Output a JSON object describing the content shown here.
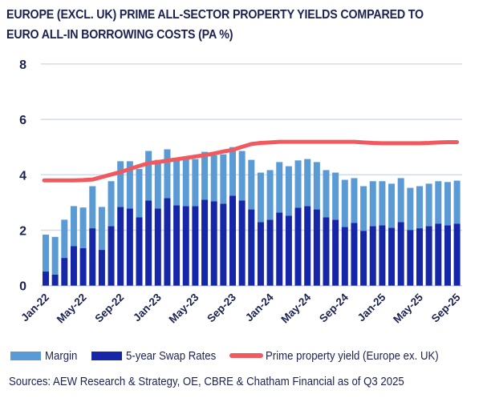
{
  "title": "EUROPE (EXCL. UK) PRIME ALL-SECTOR PROPERTY YIELDS COMPARED TO EURO ALL-IN BORROWING COSTS (PA %)",
  "colors": {
    "margin": "#5b9bd5",
    "swap": "#1526a8",
    "yield_line": "#f05a5f",
    "grid": "#d3dbee",
    "text": "#1b2252"
  },
  "legend": [
    {
      "key": "margin",
      "label": "Margin"
    },
    {
      "key": "swap",
      "label": "5-year Swap Rates"
    },
    {
      "key": "yield_line",
      "label": "Prime property yield (Europe ex. UK)"
    }
  ],
  "source": "Sources: AEW Research & Strategy, OE, CBRE & Chatham Financial as of Q3 2025",
  "chart_data": {
    "type": "bar",
    "stacked": true,
    "title": "EUROPE (EXCL. UK) PRIME ALL-SECTOR PROPERTY YIELDS COMPARED TO EURO ALL-IN BORROWING COSTS (PA %)",
    "xlabel": "",
    "ylabel": "",
    "ylim": [
      0,
      8
    ],
    "yticks": [
      0,
      2,
      4,
      6,
      8
    ],
    "grid": true,
    "legend_position": "bottom",
    "x": [
      "Jan-22",
      "Feb-22",
      "Mar-22",
      "Apr-22",
      "May-22",
      "Jun-22",
      "Jul-22",
      "Aug-22",
      "Sep-22",
      "Oct-22",
      "Nov-22",
      "Dec-22",
      "Jan-23",
      "Feb-23",
      "Mar-23",
      "Apr-23",
      "May-23",
      "Jun-23",
      "Jul-23",
      "Aug-23",
      "Sep-23",
      "Oct-23",
      "Nov-23",
      "Dec-23",
      "Jan-24",
      "Feb-24",
      "Mar-24",
      "Apr-24",
      "May-24",
      "Jun-24",
      "Jul-24",
      "Aug-24",
      "Sep-24",
      "Oct-24",
      "Nov-24",
      "Dec-24",
      "Jan-25",
      "Feb-25",
      "Mar-25",
      "Apr-25",
      "May-25",
      "Jun-25",
      "Jul-25",
      "Aug-25",
      "Sep-25"
    ],
    "xtick_labels": [
      "Jan-22",
      "May-22",
      "Sep-22",
      "Jan-23",
      "May-23",
      "Sep-23",
      "Jan-24",
      "May-24",
      "Sep-24",
      "Jan-25",
      "May-25",
      "Sep-25"
    ],
    "series": [
      {
        "name": "5-year Swap Rates",
        "key": "swap",
        "type": "bar",
        "values": [
          0.51,
          0.4,
          1.0,
          1.43,
          1.35,
          2.07,
          1.29,
          2.15,
          2.84,
          2.78,
          2.47,
          3.07,
          2.78,
          3.16,
          2.9,
          2.87,
          2.87,
          3.1,
          3.04,
          2.96,
          3.25,
          3.07,
          2.75,
          2.29,
          2.38,
          2.64,
          2.52,
          2.81,
          2.87,
          2.75,
          2.47,
          2.38,
          2.12,
          2.26,
          1.98,
          2.15,
          2.18,
          2.09,
          2.29,
          2.01,
          2.07,
          2.15,
          2.24,
          2.18,
          2.24
        ]
      },
      {
        "name": "Margin",
        "key": "margin",
        "type": "bar",
        "values": [
          1.33,
          1.36,
          1.38,
          1.44,
          1.47,
          1.52,
          1.55,
          1.62,
          1.65,
          1.71,
          1.74,
          1.79,
          1.76,
          1.76,
          1.7,
          1.7,
          1.7,
          1.73,
          1.67,
          1.78,
          1.75,
          1.79,
          1.79,
          1.79,
          1.79,
          1.82,
          1.79,
          1.71,
          1.7,
          1.71,
          1.7,
          1.7,
          1.7,
          1.62,
          1.61,
          1.62,
          1.59,
          1.59,
          1.59,
          1.52,
          1.52,
          1.53,
          1.53,
          1.56,
          1.55
        ]
      },
      {
        "name": "Prime property yield (Europe ex. UK)",
        "key": "yield_line",
        "type": "line",
        "values": [
          3.8,
          3.8,
          3.8,
          3.8,
          3.81,
          3.83,
          3.92,
          4.01,
          4.1,
          4.21,
          4.32,
          4.42,
          4.46,
          4.51,
          4.56,
          4.61,
          4.66,
          4.71,
          4.77,
          4.84,
          4.9,
          5.01,
          5.11,
          5.15,
          5.17,
          5.19,
          5.19,
          5.19,
          5.19,
          5.19,
          5.19,
          5.19,
          5.19,
          5.19,
          5.17,
          5.15,
          5.14,
          5.14,
          5.14,
          5.14,
          5.14,
          5.15,
          5.17,
          5.18,
          5.18
        ]
      }
    ]
  }
}
